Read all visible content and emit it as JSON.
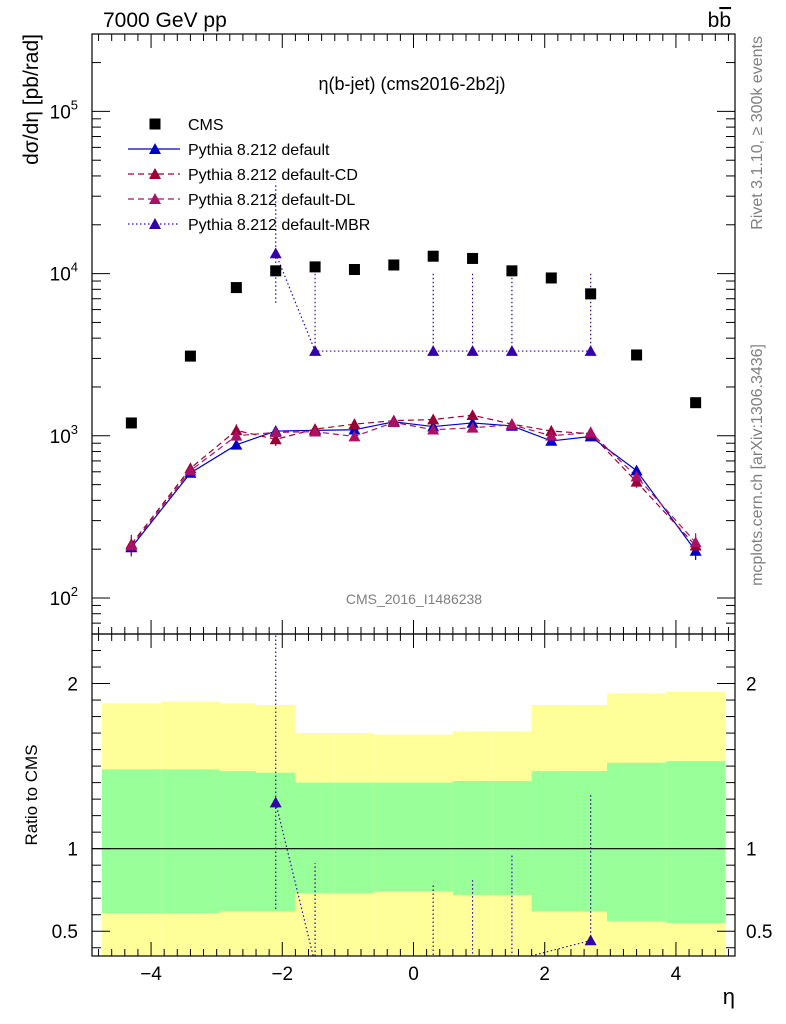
{
  "header": {
    "left": "7000 GeV pp",
    "right": "bb̅",
    "right_base": "b",
    "right_bar": "b"
  },
  "side_labels": {
    "rivet": "Rivet 3.1.10, ≥ 300k events",
    "mcplots": "mcplots.cern.ch [arXiv:1306.3436]"
  },
  "watermark": "CMS_2016_I1486238",
  "chart_data": {
    "type": "scatter",
    "title": "η(b-jet) (cms2016-2b2j)",
    "xlabel": "η",
    "ylabel": "dσ/dη [pb/rad]",
    "ratio_ylabel": "Ratio to CMS",
    "xlim": [
      -4.9,
      4.9
    ],
    "ylim": [
      60,
      300000
    ],
    "yscale": "log",
    "ratio_ylim": [
      0.35,
      2.3
    ],
    "x_ticks": [
      -4,
      -2,
      0,
      2,
      4
    ],
    "x_tick_labels": [
      "−4",
      "−2",
      "0",
      "2",
      "4"
    ],
    "y_ticks": [
      100,
      1000,
      10000,
      100000
    ],
    "y_tick_labels": [
      {
        "base": "10",
        "exp": "2"
      },
      {
        "base": "10",
        "exp": "3"
      },
      {
        "base": "10",
        "exp": "4"
      },
      {
        "base": "10",
        "exp": "5"
      }
    ],
    "ratio_ticks": [
      0.5,
      1,
      2
    ],
    "ratio_tick_labels": [
      "0.5",
      "1",
      "2"
    ],
    "legend_position": "top-left",
    "x": [
      -4.3,
      -3.4,
      -2.7,
      -2.1,
      -1.5,
      -0.9,
      -0.3,
      0.3,
      0.9,
      1.5,
      2.1,
      2.7,
      3.4,
      4.3
    ],
    "bin_edges": [
      -4.75,
      -3.85,
      -2.95,
      -2.4,
      -1.8,
      -1.2,
      -0.6,
      0,
      0.6,
      1.2,
      1.8,
      2.4,
      2.95,
      3.85,
      4.75
    ],
    "ratio_bands": {
      "inner": [
        [
          0.61,
          1.48
        ],
        [
          0.61,
          1.48
        ],
        [
          0.62,
          1.47
        ],
        [
          0.62,
          1.46
        ],
        [
          0.73,
          1.4
        ],
        [
          0.73,
          1.4
        ],
        [
          0.74,
          1.4
        ],
        [
          0.74,
          1.4
        ],
        [
          0.72,
          1.41
        ],
        [
          0.72,
          1.41
        ],
        [
          0.62,
          1.47
        ],
        [
          0.62,
          1.47
        ],
        [
          0.56,
          1.52
        ],
        [
          0.55,
          1.53
        ]
      ],
      "outer": [
        [
          0.35,
          1.88
        ],
        [
          0.35,
          1.89
        ],
        [
          0.35,
          1.88
        ],
        [
          0.35,
          1.87
        ],
        [
          0.35,
          1.7
        ],
        [
          0.35,
          1.7
        ],
        [
          0.35,
          1.69
        ],
        [
          0.35,
          1.69
        ],
        [
          0.35,
          1.71
        ],
        [
          0.35,
          1.71
        ],
        [
          0.35,
          1.87
        ],
        [
          0.35,
          1.87
        ],
        [
          0.35,
          1.94
        ],
        [
          0.35,
          1.95
        ]
      ],
      "inner_color": "#99ff99",
      "outer_color": "#ffff99"
    },
    "series": [
      {
        "name": "CMS",
        "marker": "square",
        "color": "#000000",
        "line": "none",
        "values": [
          1200,
          3100,
          8200,
          10400,
          11000,
          10600,
          11300,
          12800,
          12400,
          10400,
          9400,
          7500,
          3150,
          1600
        ]
      },
      {
        "name": "Pythia 8.212 default",
        "marker": "triangle",
        "color": "#0000cc",
        "line": "solid",
        "values": [
          205,
          590,
          880,
          1070,
          1080,
          1090,
          1220,
          1140,
          1200,
          1150,
          930,
          990,
          610,
          195
        ],
        "errors": [
          0.12,
          0.05,
          0.06,
          0.05,
          0.04,
          0.04,
          0.05,
          0.05,
          0.05,
          0.05,
          0.06,
          0.06,
          0.06,
          0.12
        ]
      },
      {
        "name": "Pythia 8.212 default-CD",
        "marker": "triangle",
        "color": "#990033",
        "line": "dashed",
        "values": [
          215,
          630,
          1080,
          950,
          1100,
          1180,
          1240,
          1260,
          1340,
          1180,
          1070,
          1030,
          520,
          210
        ],
        "errors": [
          0.14,
          0.06,
          0.09,
          0.09,
          0.06,
          0.06,
          0.06,
          0.06,
          0.06,
          0.06,
          0.08,
          0.08,
          0.08,
          0.14
        ]
      },
      {
        "name": "Pythia 8.212 default-DL",
        "marker": "triangle",
        "color": "#aa1166",
        "line": "dashed",
        "values": [
          210,
          610,
          1000,
          1050,
          1060,
          990,
          1210,
          1090,
          1120,
          1170,
          1000,
          1050,
          560,
          220
        ],
        "errors": [
          0.14,
          0.06,
          0.09,
          0.09,
          0.06,
          0.06,
          0.06,
          0.06,
          0.06,
          0.06,
          0.08,
          0.08,
          0.08,
          0.14
        ]
      },
      {
        "name": "Pythia 8.212 default-MBR",
        "marker": "triangle",
        "color": "#3300aa",
        "line": "dotted",
        "x": [
          -2.1,
          -1.5,
          0.3,
          0.9,
          1.5,
          2.7
        ],
        "values": [
          13300,
          3330,
          3330,
          3330,
          3330,
          3330
        ],
        "err_low": [
          6700,
          10,
          10,
          10,
          10,
          10
        ],
        "err_high": [
          23000,
          6700,
          6700,
          6700,
          6700,
          6700
        ]
      }
    ]
  }
}
